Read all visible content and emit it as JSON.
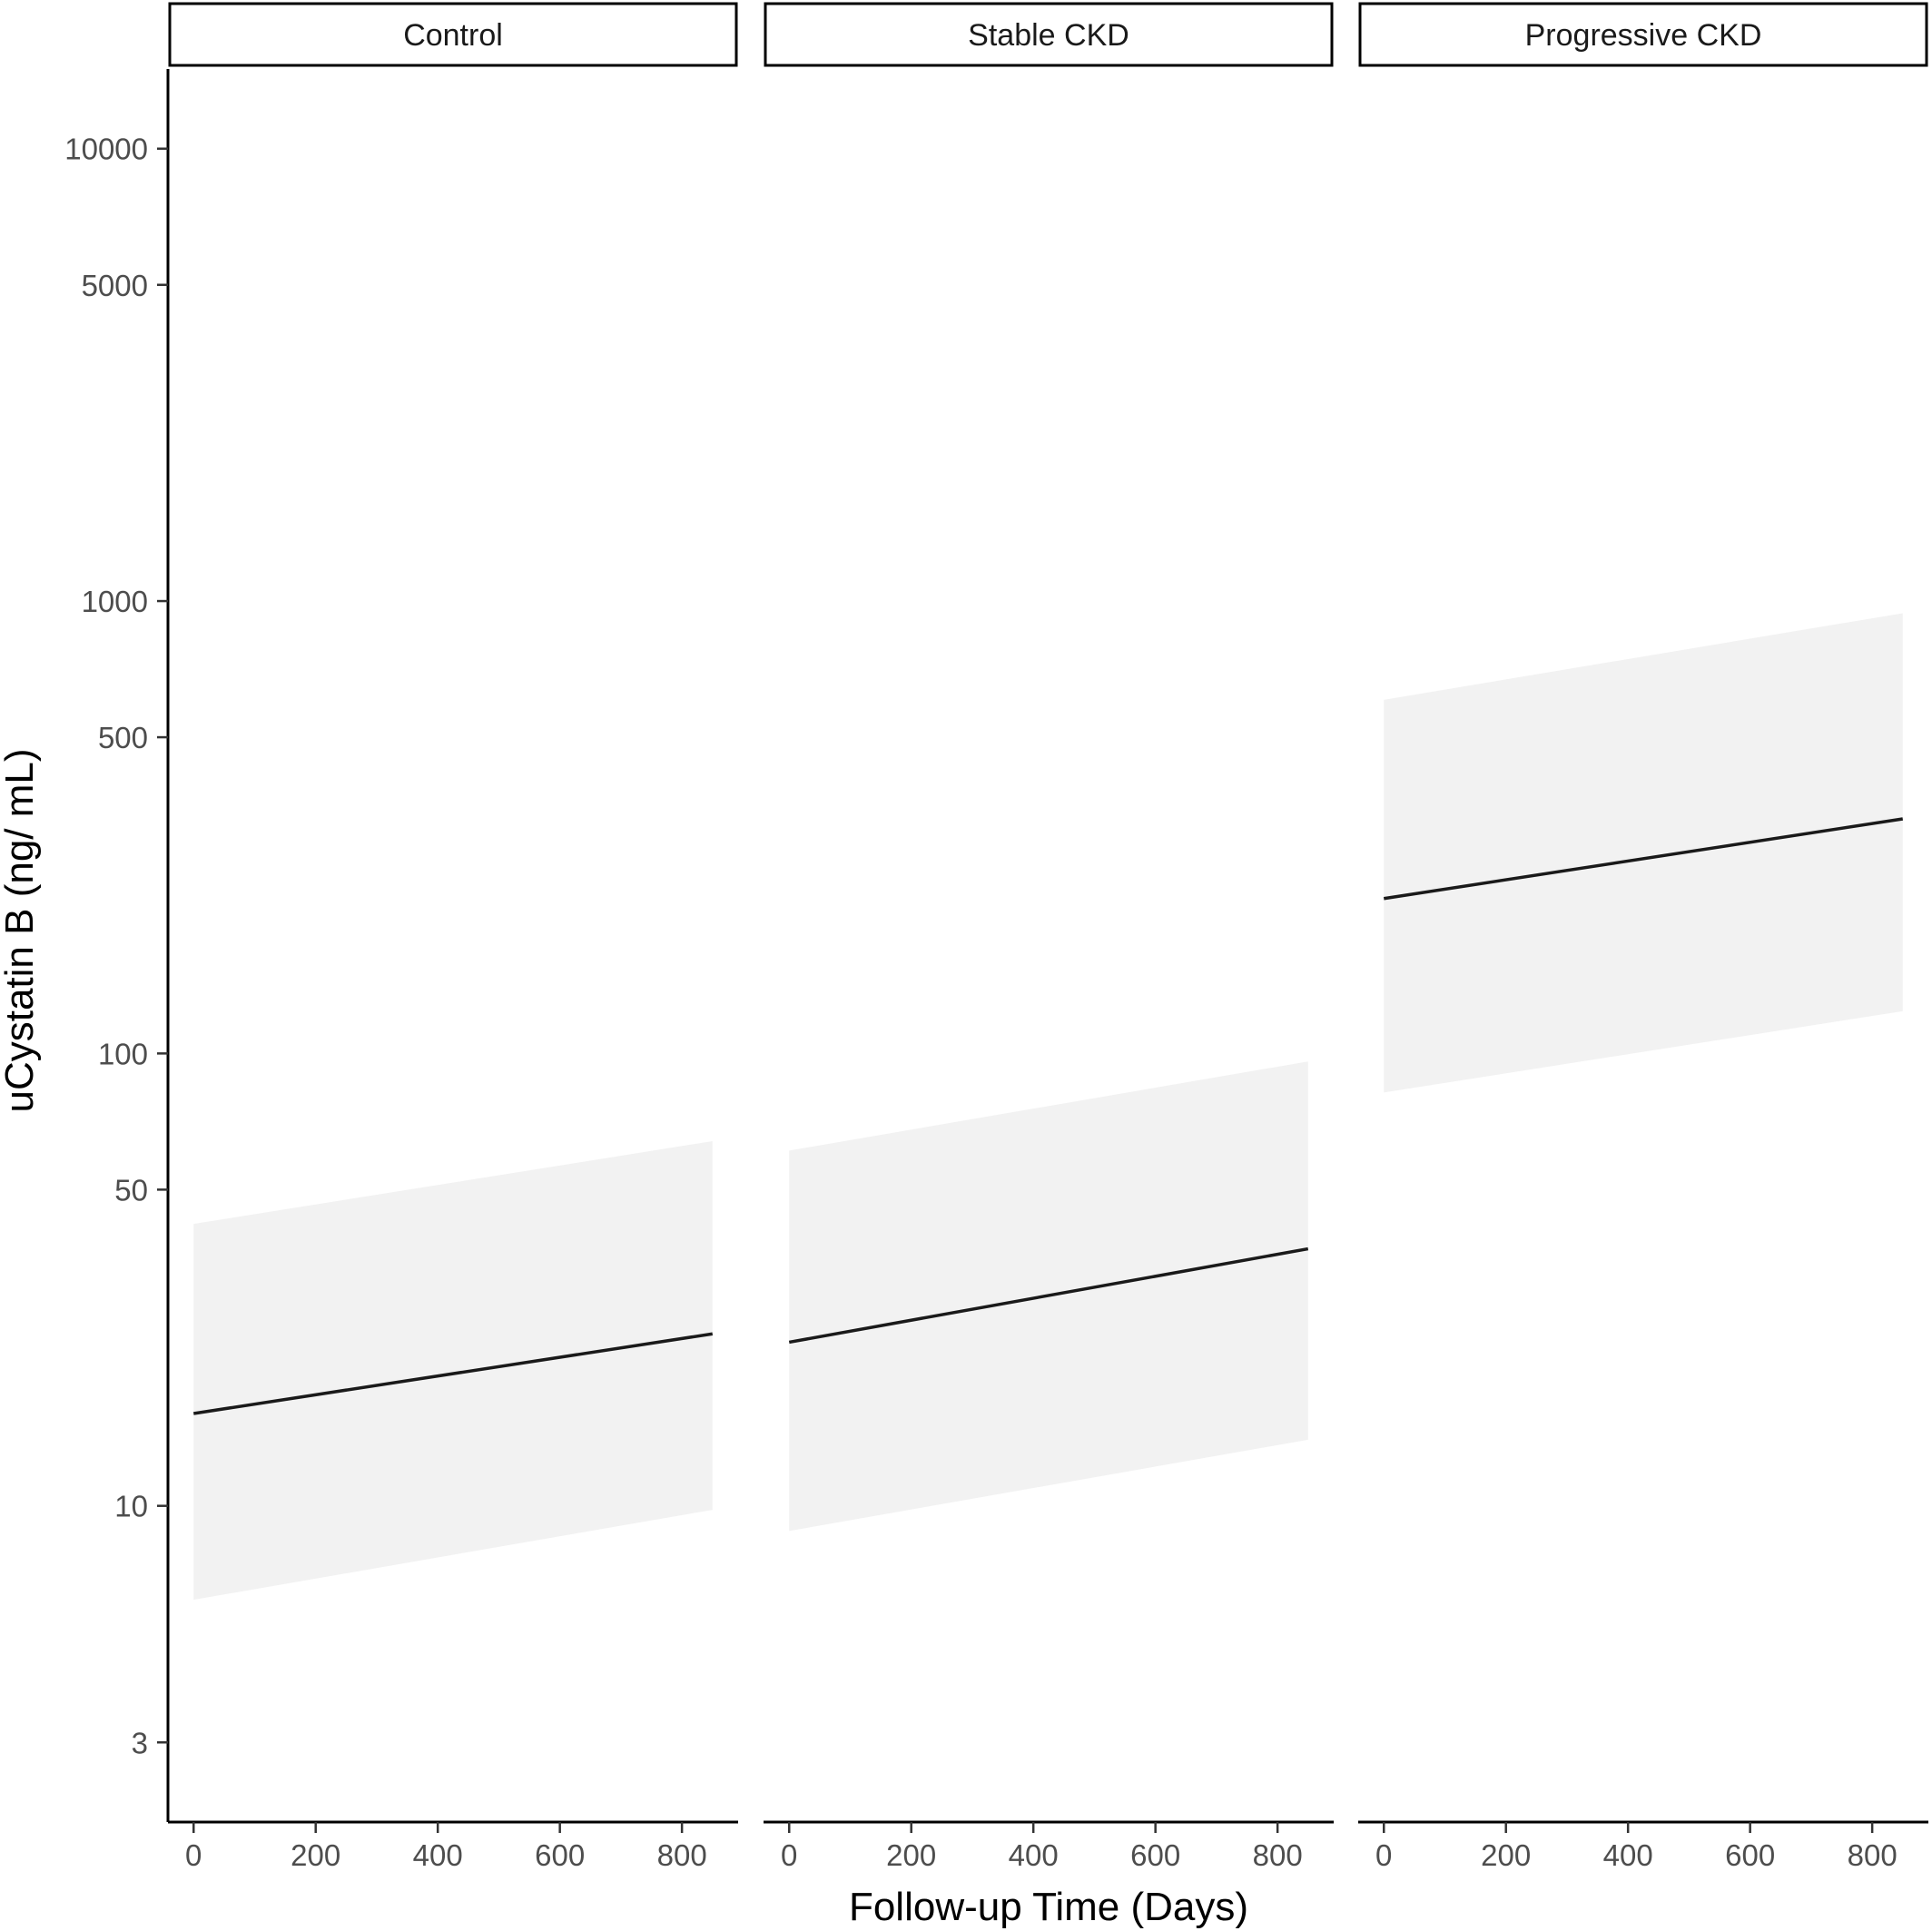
{
  "chart_data": {
    "type": "line",
    "facet_labels": [
      "Control",
      "Stable CKD",
      "Progressive CKD"
    ],
    "xlabel": "Follow-up Time (Days)",
    "ylabel": "uCystatin B (ng/ mL)",
    "y_scale": "log",
    "ylim": [
      2,
      15000
    ],
    "xlim": [
      -42,
      892
    ],
    "x_ticks": [
      0,
      200,
      400,
      600,
      800
    ],
    "x_tick_labels": [
      "0",
      "200",
      "400",
      "600",
      "800"
    ],
    "y_ticks": [
      3,
      10,
      50,
      100,
      500,
      1000,
      5000,
      10000
    ],
    "y_tick_labels": [
      "3",
      "10",
      "50",
      "100",
      "500",
      "1000",
      "5000",
      "10000"
    ],
    "grid": false,
    "legend": "none",
    "colors": {
      "line": "#1a1a1a",
      "ribbon": "#f2f2f2",
      "axis": "#000000",
      "strip_border": "#000000"
    },
    "series": [
      {
        "facet": "Control",
        "x": [
          0,
          850
        ],
        "y": [
          16,
          24
        ],
        "lower": [
          6.2,
          9.8
        ],
        "upper": [
          42,
          64
        ]
      },
      {
        "facet": "Stable CKD",
        "x": [
          0,
          850
        ],
        "y": [
          23,
          37
        ],
        "lower": [
          8.8,
          14
        ],
        "upper": [
          61,
          96
        ]
      },
      {
        "facet": "Progressive CKD",
        "x": [
          0,
          850
        ],
        "y": [
          220,
          330
        ],
        "lower": [
          82,
          124
        ],
        "upper": [
          605,
          940
        ]
      }
    ]
  }
}
